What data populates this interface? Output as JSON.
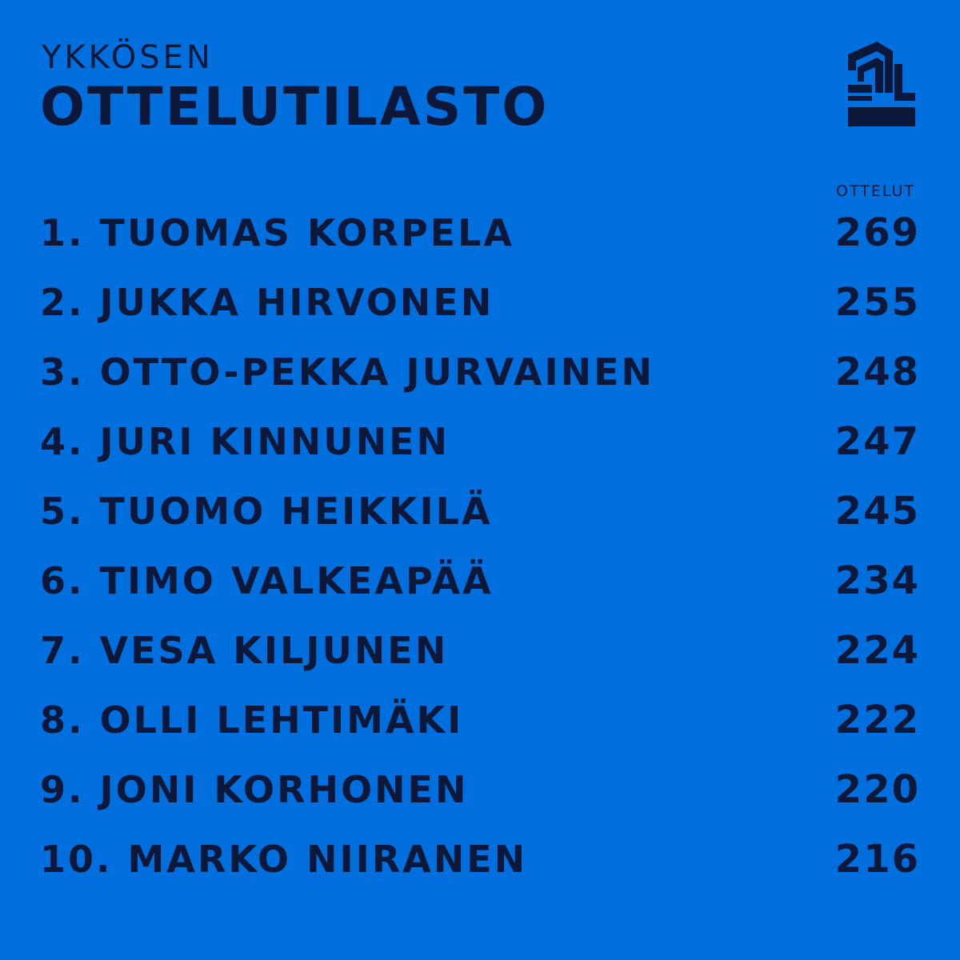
{
  "header": {
    "kicker": "YKKÖSEN",
    "title": "OTTELUTILASTO",
    "logo_icon": "ykkonen-league-logo-icon"
  },
  "table": {
    "column_header": "OTTELUT",
    "rows": [
      {
        "rank": "1.",
        "name": "TUOMAS KORPELA",
        "games": "269"
      },
      {
        "rank": "2.",
        "name": "JUKKA HIRVONEN",
        "games": "255"
      },
      {
        "rank": "3.",
        "name": "OTTO-PEKKA JURVAINEN",
        "games": "248"
      },
      {
        "rank": "4.",
        "name": "JURI KINNUNEN",
        "games": "247"
      },
      {
        "rank": "5.",
        "name": "TUOMO HEIKKILÄ",
        "games": "245"
      },
      {
        "rank": "6.",
        "name": "TIMO VALKEAPÄÄ",
        "games": "234"
      },
      {
        "rank": "7.",
        "name": "VESA KILJUNEN",
        "games": "224"
      },
      {
        "rank": "8.",
        "name": "OLLI LEHTIMÄKI",
        "games": "222"
      },
      {
        "rank": "9.",
        "name": "JONI KORHONEN",
        "games": "220"
      },
      {
        "rank": "10.",
        "name": "MARKO NIIRANEN",
        "games": "216"
      }
    ]
  },
  "colors": {
    "background": "#006fde",
    "text": "#0c1839"
  }
}
